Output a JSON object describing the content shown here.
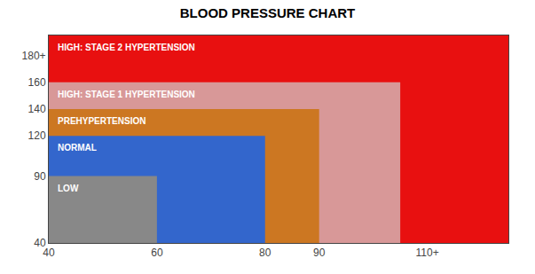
{
  "chart_data": {
    "type": "region",
    "title": "BLOOD PRESSURE CHART",
    "xlim": [
      40,
      125
    ],
    "ylim": [
      40,
      195
    ],
    "xticks": [
      40,
      60,
      80,
      90,
      {
        "value": 110,
        "label": "110+"
      }
    ],
    "yticks": [
      40,
      90,
      120,
      140,
      160,
      {
        "value": 180,
        "label": "180+"
      }
    ],
    "grid": false,
    "series": [
      {
        "name": "HIGH: STAGE 2 HYPERTENSION",
        "color": "#e81010",
        "x": 40,
        "width": 85,
        "bottom": 40,
        "height": 155
      },
      {
        "name": "HIGH: STAGE 1 HYPERTENSION",
        "color": "#d89898",
        "x": 40,
        "width": 65,
        "bottom": 40,
        "height": 120
      },
      {
        "name": "PREHYPERTENSION",
        "color": "#cc7722",
        "x": 40,
        "width": 50,
        "bottom": 40,
        "height": 100
      },
      {
        "name": "NORMAL",
        "color": "#3366cc",
        "x": 40,
        "width": 40,
        "bottom": 40,
        "height": 80
      },
      {
        "name": "LOW",
        "color": "#888888",
        "x": 40,
        "width": 20,
        "bottom": 40,
        "height": 50
      }
    ]
  }
}
